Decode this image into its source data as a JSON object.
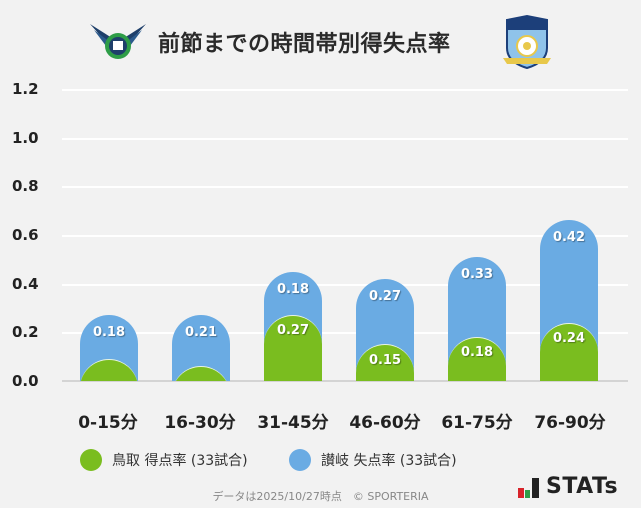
{
  "header": {
    "title": "前節までの時間帯別得失点率",
    "left_logo": "tottori-crest-logo",
    "right_logo": "kamatamare-sanuki-crest-logo"
  },
  "chart_data": {
    "type": "bar",
    "title": "前節までの時間帯別得失点率",
    "categories": [
      "0-15分",
      "16-30分",
      "31-45分",
      "46-60分",
      "61-75分",
      "76-90分"
    ],
    "series": [
      {
        "name": "鳥取 得点率 (33試合)",
        "color": "#7abd1f",
        "values": [
          0.09,
          0.06,
          0.27,
          0.15,
          0.18,
          0.24
        ],
        "labels": [
          "",
          "",
          "0.27",
          "0.15",
          "0.18",
          "0.24"
        ]
      },
      {
        "name": "讃岐 失点率 (33試合)",
        "color": "#6aabe3",
        "values": [
          0.18,
          0.21,
          0.18,
          0.27,
          0.33,
          0.42
        ],
        "labels": [
          "0.18",
          "0.21",
          "0.18",
          "0.27",
          "0.33",
          "0.42"
        ]
      }
    ],
    "stacked": true,
    "xlabel": "",
    "ylabel": "",
    "ylim": [
      0,
      1.2
    ],
    "yticks": [
      "1.2",
      "1.0",
      "0.8",
      "0.6",
      "0.4",
      "0.2",
      "0.0"
    ],
    "grid": true,
    "legend_position": "bottom"
  },
  "legend": {
    "items": [
      {
        "label": "鳥取 得点率 (33試合)",
        "color": "#7abd1f"
      },
      {
        "label": "讃岐 失点率 (33試合)",
        "color": "#6aabe3"
      }
    ]
  },
  "footer": {
    "note": "データは2025/10/27時点　© SPORTERIA",
    "brand": "STATs"
  }
}
